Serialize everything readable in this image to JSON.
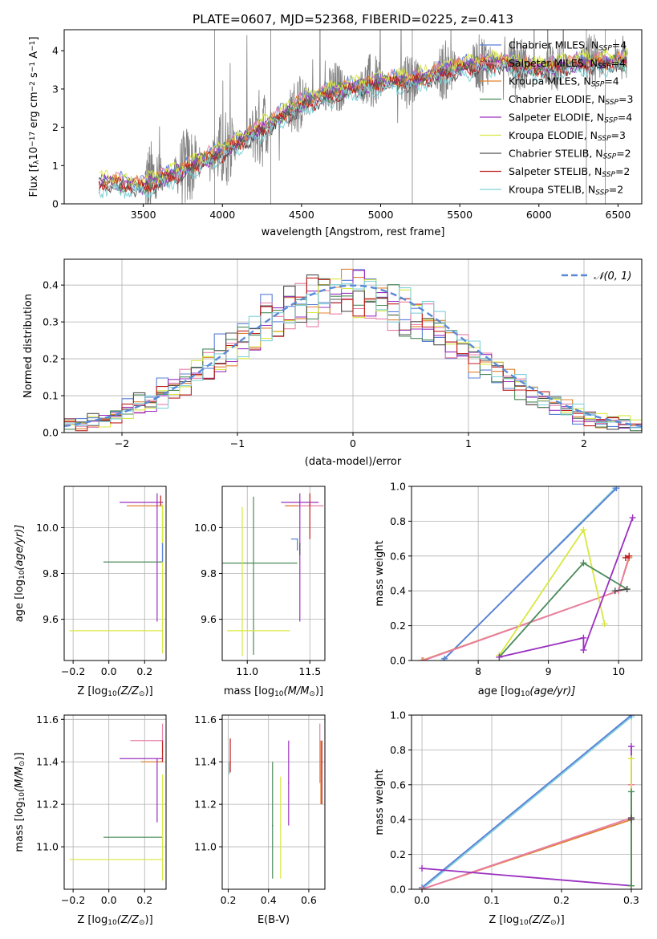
{
  "figure": {
    "title": "PLATE=0607, MJD=52368, FIBERID=0225, z=0.413"
  },
  "chart_data": [
    {
      "id": "spectrum",
      "type": "line",
      "xlabel": "wavelength [Angstrom, rest frame]",
      "ylabel_parts": [
        "Flux [f",
        "λ",
        "10",
        "−17",
        " erg cm",
        "−2",
        " s",
        "−1",
        " A",
        "−1",
        "]"
      ],
      "xlim": [
        3000,
        6650
      ],
      "ylim": [
        0,
        4.55
      ],
      "xticks": [
        3500,
        4000,
        4500,
        5000,
        5500,
        6000,
        6500
      ],
      "yticks": [
        0,
        1,
        2,
        3,
        4
      ],
      "grid": false,
      "legend_position": "top-right",
      "data_color": "#808080",
      "data_wavelength_range": [
        3510,
        6560
      ],
      "model_wavelength_range": [
        3220,
        6560
      ],
      "model_anchor_x": [
        3220,
        3250,
        3500,
        3750,
        4000,
        4250,
        4500,
        4750,
        5000,
        5250,
        5500,
        5750,
        6000,
        6250,
        6500
      ],
      "model_anchor_y": [
        0.55,
        0.6,
        0.5,
        0.9,
        1.4,
        2.0,
        2.65,
        3.0,
        3.2,
        3.3,
        3.6,
        3.75,
        3.55,
        3.7,
        3.75
      ],
      "series": [
        {
          "name": "Chabrier MILES",
          "nssp": "4",
          "color": "#5a7fd6",
          "offset": 0.08
        },
        {
          "name": "Salpeter MILES",
          "nssp": "4",
          "color": "#e87ea8",
          "offset": 0.05
        },
        {
          "name": "Kroupa MILES",
          "nssp": "4",
          "color": "#e08030",
          "offset": 0.0
        },
        {
          "name": "Chabrier ELODIE",
          "nssp": "3",
          "color": "#4a8a5a",
          "offset": -0.05
        },
        {
          "name": "Salpeter ELODIE",
          "nssp": "4",
          "color": "#9b30c0",
          "offset": -0.03
        },
        {
          "name": "Kroupa ELODIE",
          "nssp": "3",
          "color": "#d8e840",
          "offset": 0.1
        },
        {
          "name": "Chabrier STELIB",
          "nssp": "2",
          "color": "#505050",
          "offset": -0.12
        },
        {
          "name": "Salpeter STELIB",
          "nssp": "2",
          "color": "#c02020",
          "offset": -0.1
        },
        {
          "name": "Kroupa STELIB",
          "nssp": "2",
          "color": "#80d0d8",
          "offset": -0.2
        }
      ]
    },
    {
      "id": "residuals",
      "type": "line",
      "xlabel": "(data-model)/error",
      "ylabel": "Normed distribution",
      "xlim": [
        -2.5,
        2.5
      ],
      "ylim": [
        0,
        0.47
      ],
      "xticks": [
        -2,
        -1,
        0,
        1,
        2
      ],
      "yticks": [
        0.0,
        0.1,
        0.2,
        0.3,
        0.4
      ],
      "grid": true,
      "legend_position": "top-right",
      "reference_curve": {
        "name": "𝒩(0, 1)",
        "color": "#5a8ad6",
        "style": "dashed"
      },
      "bin_width": 0.1,
      "histogram_colors": [
        "#5a7fd6",
        "#e87ea8",
        "#e08030",
        "#4a8a5a",
        "#9b30c0",
        "#d8e840",
        "#505050",
        "#c02020",
        "#80d0d8"
      ]
    },
    {
      "id": "age_vs_Z",
      "type": "scatter",
      "xlabel_parts": [
        "Z [log",
        "10",
        "(Z/Z",
        "⊙",
        ")]"
      ],
      "ylabel_parts": [
        "age  [log",
        "10",
        "(age/yr)]"
      ],
      "xlim": [
        -0.25,
        0.32
      ],
      "ylim": [
        9.42,
        10.18
      ],
      "xticks": [
        -0.2,
        0.0,
        0.2
      ],
      "yticks": [
        9.6,
        9.8,
        10.0
      ],
      "grid": true,
      "points": [
        {
          "x": 0.3,
          "y": 10.11,
          "xerr": [
            0.24,
            0.0
          ],
          "yerr": [
            0.0,
            0.0
          ],
          "color": "#9b30c0"
        },
        {
          "x": 0.3,
          "y": 10.095,
          "xerr": [
            0.2,
            0.0
          ],
          "yerr": [
            0.0,
            0.0
          ],
          "color": "#e08030"
        },
        {
          "x": 0.27,
          "y": 10.11,
          "xerr": [
            0.0,
            0.0
          ],
          "yerr": [
            0.52,
            0.04
          ],
          "color": "#9b30c0"
        },
        {
          "x": 0.29,
          "y": 10.1,
          "xerr": [
            0.0,
            0.0
          ],
          "yerr": [
            0.0,
            0.04
          ],
          "color": "#c02020"
        },
        {
          "x": 0.3,
          "y": 9.85,
          "xerr": [
            0.33,
            0.0
          ],
          "yerr": [
            0.0,
            0.25
          ],
          "color": "#4a8a5a"
        },
        {
          "x": 0.3,
          "y": 9.55,
          "xerr": [
            0.52,
            0.0
          ],
          "yerr": [
            0.1,
            0.55
          ],
          "color": "#d8e840"
        },
        {
          "x": 0.3,
          "y": 9.93,
          "xerr": [
            0.0,
            0.0
          ],
          "yerr": [
            0.08,
            0.0
          ],
          "color": "#5a7fd6"
        }
      ]
    },
    {
      "id": "age_vs_mass",
      "type": "scatter",
      "xlabel_parts": [
        "mass [log",
        "10",
        "(M/M",
        "⊙",
        ")]"
      ],
      "ylabel_parts": [],
      "xlim": [
        10.8,
        11.62
      ],
      "ylim": [
        9.42,
        10.18
      ],
      "xticks": [
        11.0,
        11.5
      ],
      "yticks": [
        9.6,
        9.8,
        10.0
      ],
      "grid": true,
      "points": [
        {
          "x": 11.42,
          "y": 10.11,
          "xerr": [
            0.15,
            0.15
          ],
          "yerr": [
            0.0,
            0.0
          ],
          "color": "#9b30c0"
        },
        {
          "x": 11.46,
          "y": 10.095,
          "xerr": [
            0.15,
            0.15
          ],
          "yerr": [
            0.0,
            0.0
          ],
          "color": "#e87ea8"
        },
        {
          "x": 11.4,
          "y": 10.095,
          "xerr": [
            0.1,
            0.0
          ],
          "yerr": [
            0.0,
            0.0
          ],
          "color": "#e08030"
        },
        {
          "x": 11.42,
          "y": 10.11,
          "xerr": [
            0.0,
            0.0
          ],
          "yerr": [
            0.52,
            0.04
          ],
          "color": "#9b30c0"
        },
        {
          "x": 11.5,
          "y": 10.1,
          "xerr": [
            0.0,
            0.0
          ],
          "yerr": [
            0.15,
            0.05
          ],
          "color": "#c02020"
        },
        {
          "x": 11.05,
          "y": 9.845,
          "xerr": [
            0.25,
            0.35
          ],
          "yerr": [
            0.4,
            0.29
          ],
          "color": "#4a8a5a"
        },
        {
          "x": 10.96,
          "y": 9.55,
          "xerr": [
            0.12,
            0.38
          ],
          "yerr": [
            0.11,
            0.54
          ],
          "color": "#d8e840"
        },
        {
          "x": 11.4,
          "y": 9.95,
          "xerr": [
            0.05,
            0.0
          ],
          "yerr": [
            0.05,
            0.0
          ],
          "color": "#5a7fd6"
        },
        {
          "x": 11.42,
          "y": 9.93,
          "xerr": [
            0.0,
            0.0
          ],
          "yerr": [
            0.05,
            0.0
          ],
          "color": "#505050"
        }
      ]
    },
    {
      "id": "weight_vs_age",
      "type": "line",
      "xlabel_parts": [
        "age  [log",
        "10",
        "(age/yr)]"
      ],
      "ylabel": "mass weight",
      "xlim": [
        7.05,
        10.33
      ],
      "ylim": [
        0,
        1.0
      ],
      "xticks": [
        8,
        9,
        10
      ],
      "yticks": [
        0.0,
        0.2,
        0.4,
        0.6,
        0.8,
        1.0
      ],
      "grid": true,
      "series": [
        {
          "color": "#80d0d8",
          "x": [
            7.5,
            9.95
          ],
          "y": [
            0.0,
            0.99
          ]
        },
        {
          "color": "#5a7fd6",
          "x": [
            7.52,
            9.97
          ],
          "y": [
            0.01,
            0.99
          ]
        },
        {
          "color": "#e08030",
          "x": [
            7.2,
            10.0,
            10.15
          ],
          "y": [
            0.0,
            0.4,
            0.59
          ]
        },
        {
          "color": "#e87ea8",
          "x": [
            7.22,
            10.0,
            10.15
          ],
          "y": [
            0.0,
            0.4,
            0.6
          ]
        },
        {
          "color": "#d8e840",
          "x": [
            8.3,
            9.5,
            9.8
          ],
          "y": [
            0.03,
            0.75,
            0.21
          ]
        },
        {
          "color": "#4a8a5a",
          "x": [
            8.3,
            9.5,
            10.12
          ],
          "y": [
            0.02,
            0.56,
            0.41
          ]
        },
        {
          "color": "#9b30c0",
          "x": [
            8.3,
            9.5,
            9.5,
            10.2
          ],
          "y": [
            0.02,
            0.13,
            0.06,
            0.82
          ]
        },
        {
          "color": "#505050",
          "x": [
            9.95,
            10.12
          ],
          "y": [
            0.4,
            0.41
          ]
        },
        {
          "color": "#c02020",
          "x": [
            10.1,
            10.15
          ],
          "y": [
            0.59,
            0.6
          ]
        }
      ]
    },
    {
      "id": "mass_vs_Z",
      "type": "scatter",
      "xlabel_parts": [
        "Z [log",
        "10",
        "(Z/Z",
        "⊙",
        ")]"
      ],
      "ylabel_parts": [
        "mass [log",
        "10",
        "(M/M",
        "⊙",
        ")]"
      ],
      "xlim": [
        -0.25,
        0.32
      ],
      "ylim": [
        10.8,
        11.62
      ],
      "xticks": [
        -0.2,
        0.0,
        0.2
      ],
      "yticks": [
        11.0,
        11.2,
        11.4,
        11.6
      ],
      "grid": true,
      "points": [
        {
          "x": 0.3,
          "y": 11.5,
          "xerr": [
            0.18,
            0.0
          ],
          "yerr": [
            0.0,
            0.0
          ],
          "color": "#e87ea8"
        },
        {
          "x": 0.3,
          "y": 11.415,
          "xerr": [
            0.24,
            0.0
          ],
          "yerr": [
            0.0,
            0.0
          ],
          "color": "#9b30c0"
        },
        {
          "x": 0.3,
          "y": 11.4,
          "xerr": [
            0.12,
            0.0
          ],
          "yerr": [
            0.0,
            0.0
          ],
          "color": "#e08030"
        },
        {
          "x": 0.27,
          "y": 11.415,
          "xerr": [
            0.0,
            0.0
          ],
          "yerr": [
            0.3,
            0.0
          ],
          "color": "#9b30c0"
        },
        {
          "x": 0.3,
          "y": 11.42,
          "xerr": [
            0.0,
            0.0
          ],
          "yerr": [
            0.0,
            0.16
          ],
          "color": "#e87ea8"
        },
        {
          "x": 0.3,
          "y": 11.45,
          "xerr": [
            0.0,
            0.0
          ],
          "yerr": [
            0.05,
            0.05
          ],
          "color": "#c02020"
        },
        {
          "x": 0.3,
          "y": 11.045,
          "xerr": [
            0.33,
            0.0
          ],
          "yerr": [
            0.0,
            0.0
          ],
          "color": "#4a8a5a"
        },
        {
          "x": 0.3,
          "y": 10.94,
          "xerr": [
            0.52,
            0.0
          ],
          "yerr": [
            0.1,
            0.4
          ],
          "color": "#d8e840"
        }
      ]
    },
    {
      "id": "mass_vs_ebv",
      "type": "scatter",
      "xlabel": "E(B-V)",
      "ylabel_parts": [],
      "xlim": [
        0.17,
        0.68
      ],
      "ylim": [
        10.8,
        11.62
      ],
      "xticks": [
        0.2,
        0.4,
        0.6
      ],
      "yticks": [
        11.0,
        11.2,
        11.4,
        11.6
      ],
      "grid": true,
      "points": [
        {
          "x": 0.21,
          "y": 11.4,
          "xerr": [
            0.0,
            0.0
          ],
          "yerr": [
            0.05,
            0.11
          ],
          "color": "#c02020"
        },
        {
          "x": 0.205,
          "y": 11.37,
          "xerr": [
            0.0,
            0.0
          ],
          "yerr": [
            0.03,
            0.03
          ],
          "color": "#80d0d8"
        },
        {
          "x": 0.42,
          "y": 11.1,
          "xerr": [
            0.0,
            0.0
          ],
          "yerr": [
            0.25,
            0.3
          ],
          "color": "#4a8a5a"
        },
        {
          "x": 0.46,
          "y": 11.1,
          "xerr": [
            0.0,
            0.0
          ],
          "yerr": [
            0.25,
            0.23
          ],
          "color": "#d8e840"
        },
        {
          "x": 0.5,
          "y": 11.3,
          "xerr": [
            0.0,
            0.0
          ],
          "yerr": [
            0.2,
            0.2
          ],
          "color": "#9b30c0"
        },
        {
          "x": 0.655,
          "y": 11.4,
          "xerr": [
            0.0,
            0.0
          ],
          "yerr": [
            0.1,
            0.18
          ],
          "color": "#e87ea8"
        },
        {
          "x": 0.66,
          "y": 11.35,
          "xerr": [
            0.0,
            0.0
          ],
          "yerr": [
            0.15,
            0.15
          ],
          "color": "#e08030"
        },
        {
          "x": 0.665,
          "y": 11.4,
          "xerr": [
            0.0,
            0.0
          ],
          "yerr": [
            0.2,
            0.1
          ],
          "color": "#c02020"
        }
      ]
    },
    {
      "id": "weight_vs_Z",
      "type": "line",
      "xlabel_parts": [
        "Z [log",
        "10",
        "(Z/Z",
        "⊙",
        ")]"
      ],
      "ylabel": "mass weight",
      "xlim": [
        -0.015,
        0.315
      ],
      "ylim": [
        0,
        1.0
      ],
      "xticks": [
        0.0,
        0.1,
        0.2,
        0.3
      ],
      "yticks": [
        0.0,
        0.2,
        0.4,
        0.6,
        0.8,
        1.0
      ],
      "grid": true,
      "series": [
        {
          "color": "#80d0d8",
          "x": [
            0.0,
            0.3
          ],
          "y": [
            0.0,
            0.99
          ]
        },
        {
          "color": "#5a7fd6",
          "x": [
            0.0,
            0.3
          ],
          "y": [
            0.01,
            1.0
          ]
        },
        {
          "color": "#e08030",
          "x": [
            0.0,
            0.3,
            0.3
          ],
          "y": [
            0.0,
            0.4,
            0.6
          ]
        },
        {
          "color": "#e87ea8",
          "x": [
            0.0,
            0.3,
            0.3
          ],
          "y": [
            0.0,
            0.41,
            0.6
          ]
        },
        {
          "color": "#9b30c0",
          "x": [
            0.0,
            0.3,
            0.3
          ],
          "y": [
            0.12,
            0.02,
            0.82
          ]
        },
        {
          "color": "#d8e840",
          "x": [
            0.3,
            0.3
          ],
          "y": [
            0.02,
            0.75
          ]
        },
        {
          "color": "#4a8a5a",
          "x": [
            0.3,
            0.3
          ],
          "y": [
            0.02,
            0.56
          ]
        },
        {
          "color": "#505050",
          "x": [
            0.3,
            0.3
          ],
          "y": [
            0.4,
            0.41
          ]
        }
      ]
    }
  ]
}
